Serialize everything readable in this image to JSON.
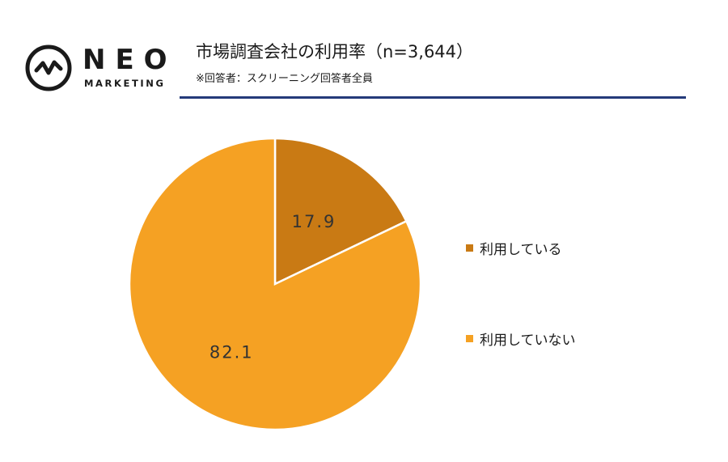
{
  "logo": {
    "icon": "neo-wave-circle-icon",
    "word": "NEO",
    "sub": "MARKETING"
  },
  "header": {
    "title": "市場調査会社の利用率（n=3,644）",
    "subtitle": "※回答者：スクリーニング回答者全員"
  },
  "colors": {
    "rule": "#243a7a",
    "slice_use": "#c97a14",
    "slice_nouse": "#f5a123"
  },
  "chart_data": {
    "type": "pie",
    "categories": [
      "利用している",
      "利用していない"
    ],
    "values": [
      17.9,
      82.1
    ],
    "data_labels": [
      "17.9",
      "82.1"
    ],
    "colors": [
      "#c97a14",
      "#f5a123"
    ],
    "legend_position": "right"
  }
}
